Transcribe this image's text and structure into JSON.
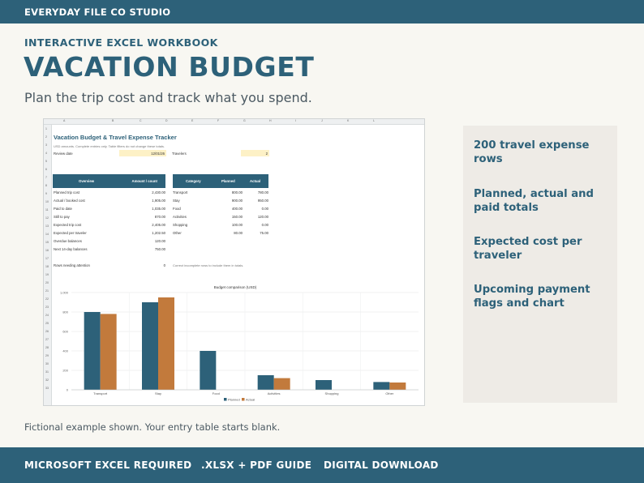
{
  "brand": "EVERYDAY FILE CO STUDIO",
  "eyebrow": "INTERACTIVE EXCEL WORKBOOK",
  "title": "VACATION BUDGET",
  "subtitle": "Plan the trip cost and track what you spend.",
  "sheet": {
    "columns": [
      "A",
      "B",
      "C",
      "D",
      "E",
      "F",
      "G",
      "H",
      "I",
      "J",
      "K",
      "L"
    ],
    "rows": [
      "1",
      "2",
      "3",
      "4",
      "5",
      "6",
      "7",
      "8",
      "9",
      "10",
      "11",
      "12",
      "13",
      "14",
      "15",
      "16",
      "17",
      "18",
      "19",
      "20",
      "21",
      "22",
      "23",
      "24",
      "25",
      "26",
      "27",
      "28",
      "29",
      "30",
      "31",
      "32",
      "33"
    ],
    "title": "Vacation Budget & Travel Expense Tracker",
    "note": "USD amounts. Complete entries only. Table filters do not change these totals.",
    "review_label": "Review date",
    "review_value": "12/01/26",
    "travelers_label": "Travelers",
    "travelers_value": "2",
    "overview": {
      "headers": [
        "Overview",
        "Amount / count"
      ],
      "rows": [
        {
          "label": "Planned trip cost",
          "value": "2,430.00"
        },
        {
          "label": "Actual / booked cost",
          "value": "1,905.00"
        },
        {
          "label": "Paid to date",
          "value": "1,035.00"
        },
        {
          "label": "Still to pay",
          "value": "870.00"
        },
        {
          "label": "Expected trip cost",
          "value": "2,405.00"
        },
        {
          "label": "Expected per traveler",
          "value": "1,202.50"
        },
        {
          "label": "Overdue balances",
          "value": "120.00"
        },
        {
          "label": "Next 14-day balances",
          "value": "750.00"
        }
      ],
      "attention_label": "Rows needing attention",
      "attention_value": "0",
      "attention_note": "Correct incomplete rows to include them in totals."
    },
    "category": {
      "headers": [
        "Category",
        "Planned",
        "Actual"
      ],
      "rows": [
        {
          "name": "Transport",
          "planned": "800.00",
          "actual": "780.00"
        },
        {
          "name": "Stay",
          "planned": "900.00",
          "actual": "950.00"
        },
        {
          "name": "Food",
          "planned": "400.00",
          "actual": "0.00"
        },
        {
          "name": "Activities",
          "planned": "150.00",
          "actual": "120.00"
        },
        {
          "name": "Shopping",
          "planned": "100.00",
          "actual": "0.00"
        },
        {
          "name": "Other",
          "planned": "80.00",
          "actual": "75.00"
        }
      ]
    }
  },
  "chart_data": {
    "type": "bar",
    "title": "Budget comparison (USD)",
    "categories": [
      "Transport",
      "Stay",
      "Food",
      "Activities",
      "Shopping",
      "Other"
    ],
    "series": [
      {
        "name": "Planned",
        "values": [
          800,
          900,
          400,
          150,
          100,
          80
        ],
        "color": "#2d6179"
      },
      {
        "name": "Actual",
        "values": [
          780,
          950,
          0,
          120,
          0,
          75
        ],
        "color": "#c27a3c"
      }
    ],
    "ylim": [
      0,
      1000
    ],
    "yticks": [
      "0",
      "200",
      "400",
      "600",
      "800",
      "1,000"
    ],
    "grid": true,
    "legend": "bottom"
  },
  "features": [
    "200 travel expense rows",
    "Planned, actual and paid totals",
    "Expected cost per traveler",
    "Upcoming payment flags and chart"
  ],
  "footnote": "Fictional example shown. Your entry table starts blank.",
  "footer": [
    "MICROSOFT EXCEL REQUIRED",
    ".XLSX + PDF GUIDE",
    "DIGITAL DOWNLOAD"
  ]
}
